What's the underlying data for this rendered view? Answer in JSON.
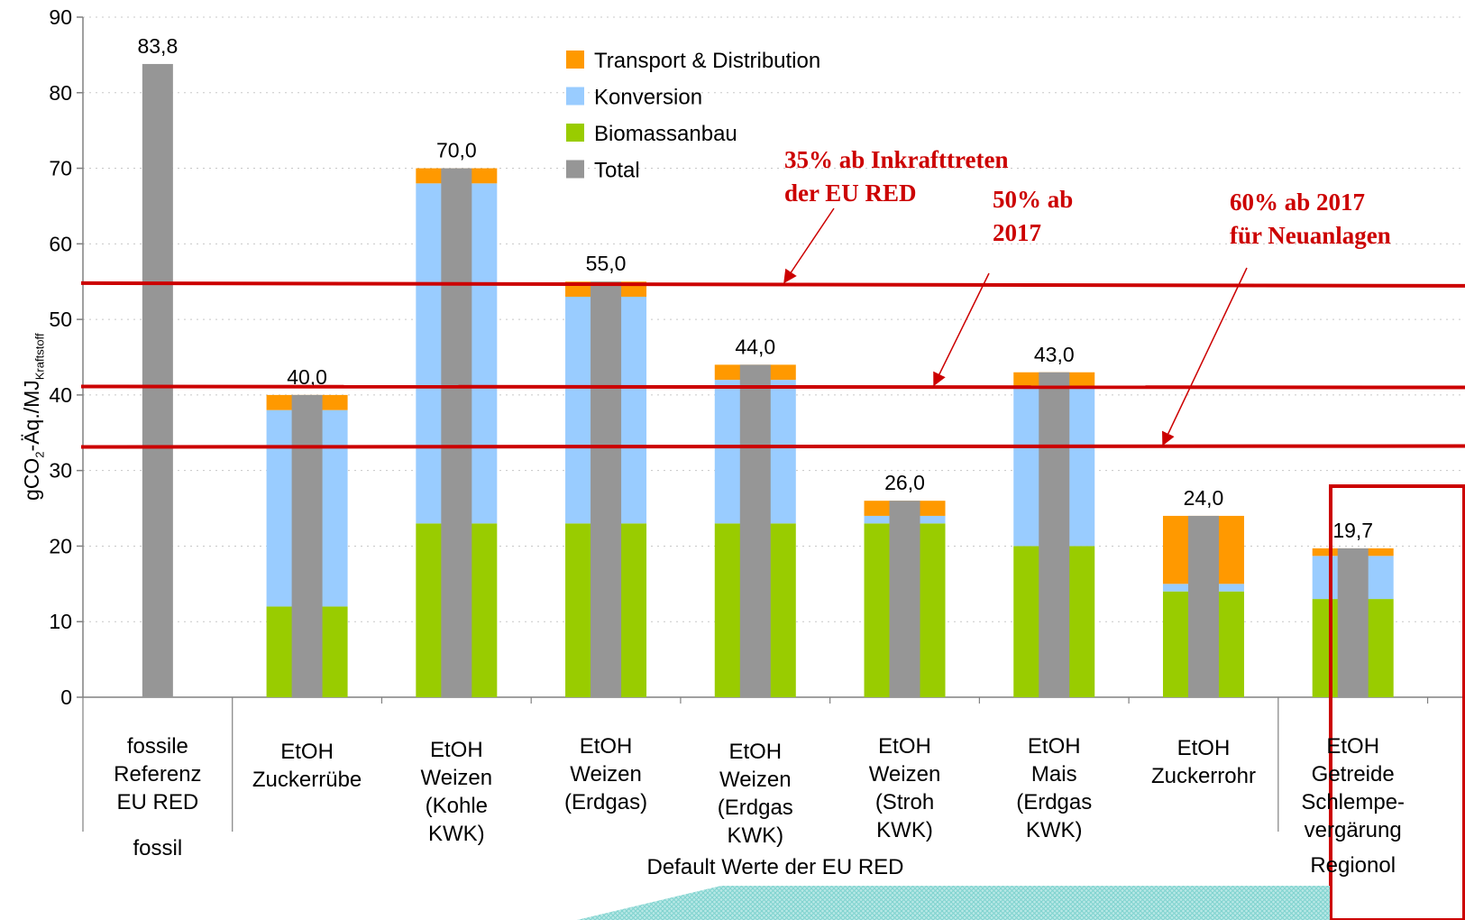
{
  "chart_data": {
    "type": "bar",
    "ylabel": {
      "main": "gCO",
      "sub1": "2",
      "mid": "-Äq./MJ",
      "sub2": "Kraftstoff"
    },
    "ylim": [
      0,
      90
    ],
    "yticks": [
      "0",
      "10",
      "20",
      "30",
      "40",
      "50",
      "60",
      "70",
      "80",
      "90"
    ],
    "grid": "horizontal dotted",
    "legend_position": "top-center",
    "legend": [
      {
        "name": "Transport & Distribution",
        "color": "#ff9900"
      },
      {
        "name": "Konversion",
        "color": "#99ccff"
      },
      {
        "name": "Biomassanbau",
        "color": "#99cc00"
      },
      {
        "name": "Total",
        "color": "#969696"
      }
    ],
    "categories": [
      {
        "lines": [
          "fossile",
          "Referenz",
          "EU RED"
        ],
        "group_line": "fossil"
      },
      {
        "lines": [
          "EtOH",
          "Zuckerrübe"
        ]
      },
      {
        "lines": [
          "EtOH",
          "Weizen",
          "(Kohle",
          "KWK)"
        ]
      },
      {
        "lines": [
          "EtOH",
          "Weizen",
          "(Erdgas)"
        ]
      },
      {
        "lines": [
          "EtOH",
          "Weizen",
          "(Erdgas",
          "KWK)"
        ]
      },
      {
        "lines": [
          "EtOH",
          "Weizen",
          "(Stroh",
          "KWK)"
        ]
      },
      {
        "lines": [
          "EtOH",
          "Mais",
          "(Erdgas",
          "KWK)"
        ]
      },
      {
        "lines": [
          "EtOH",
          "Zuckerrohr"
        ]
      },
      {
        "lines": [
          "EtOH",
          "Getreide",
          "Schlempe-",
          "vergärung"
        ],
        "group_line": "Regionol"
      }
    ],
    "group_label": "Default Werte der EU RED",
    "series": [
      {
        "name": "Biomassanbau",
        "values": [
          null,
          12,
          23,
          23,
          23,
          23,
          20,
          14,
          13
        ]
      },
      {
        "name": "Konversion",
        "values": [
          null,
          26,
          45,
          30,
          19,
          1,
          21,
          1,
          5.7
        ]
      },
      {
        "name": "Transport & Distribution",
        "values": [
          null,
          2,
          2,
          2,
          2,
          2,
          2,
          9,
          1
        ]
      },
      {
        "name": "Total",
        "values": [
          83.8,
          40,
          70,
          55,
          44,
          26,
          43,
          24,
          19.7
        ]
      }
    ],
    "total_labels": [
      "83,8",
      "40,0",
      "70,0",
      "55,0",
      "44,0",
      "26,0",
      "43,0",
      "24,0",
      "19,7"
    ],
    "reference_lines": [
      {
        "value": 54.5,
        "lines": [
          "35% ab Inkrafttreten",
          "der EU RED"
        ],
        "color": "#cc0000"
      },
      {
        "value": 41,
        "lines": [
          "50% ab",
          "2017"
        ],
        "color": "#cc0000"
      },
      {
        "value": 33,
        "lines": [
          "60% ab 2017",
          "für Neuanlagen"
        ],
        "color": "#cc0000"
      }
    ],
    "highlight_color": "#cc0000"
  }
}
